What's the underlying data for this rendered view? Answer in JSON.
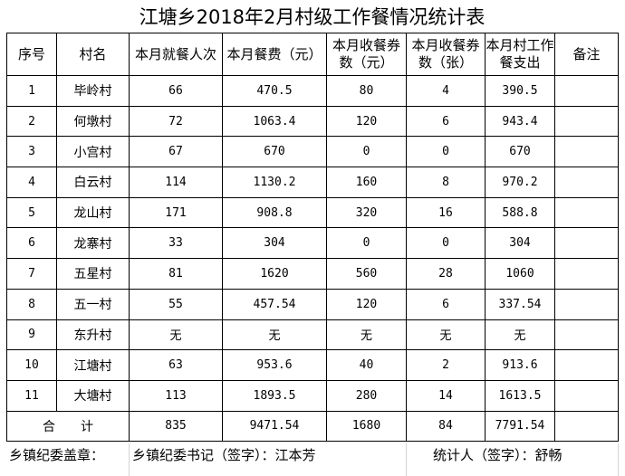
{
  "title": "江塘乡2018年2月村级工作餐情况统计表",
  "headers": [
    "序号",
    "村名",
    "本月就餐人次",
    "本月餐费（元）",
    "本月收餐券数（元）",
    "本月收餐券数（张）",
    "本月村工作餐支出",
    "备注"
  ],
  "rows": [
    [
      "1",
      "毕岭村",
      "66",
      "470.5",
      "80",
      "4",
      "390.5",
      ""
    ],
    [
      "2",
      "何墩村",
      "72",
      "1063.4",
      "120",
      "6",
      "943.4",
      ""
    ],
    [
      "3",
      "小宫村",
      "67",
      "670",
      "0",
      "0",
      "670",
      ""
    ],
    [
      "4",
      "白云村",
      "114",
      "1130.2",
      "160",
      "8",
      "970.2",
      ""
    ],
    [
      "5",
      "龙山村",
      "171",
      "908.8",
      "320",
      "16",
      "588.8",
      ""
    ],
    [
      "6",
      "龙寨村",
      "33",
      "304",
      "0",
      "0",
      "304",
      ""
    ],
    [
      "7",
      "五星村",
      "81",
      "1620",
      "560",
      "28",
      "1060",
      ""
    ],
    [
      "8",
      "五一村",
      "55",
      "457.54",
      "120",
      "6",
      "337.54",
      ""
    ],
    [
      "9",
      "东升村",
      "无",
      "无",
      "无",
      "无",
      "无",
      ""
    ],
    [
      "10",
      "江塘村",
      "63",
      "953.6",
      "40",
      "2",
      "913.6",
      ""
    ],
    [
      "11",
      "大塘村",
      "113",
      "1893.5",
      "280",
      "14",
      "1613.5",
      ""
    ]
  ],
  "total": {
    "label": "合　　计",
    "values": [
      "835",
      "9471.54",
      "1680",
      "84",
      "7791.54",
      ""
    ]
  },
  "footer": {
    "seal": "乡镇纪委盖章：",
    "secretary": "乡镇纪委书记（签字）：江本芳",
    "stats": "统计人（签字）：舒畅"
  }
}
